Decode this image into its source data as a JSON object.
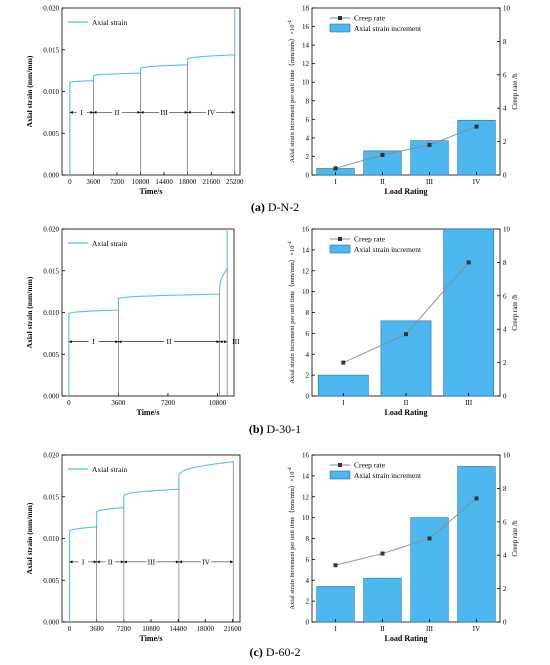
{
  "panels": [
    {
      "caption_letter": "(a)",
      "caption_name": "D-N-2",
      "left": {
        "ylabel": "Axial strain (mm/mm)",
        "xlabel": "Time/s",
        "legend": "Axial strain",
        "xticks": [
          "0",
          "3600",
          "7200",
          "10800",
          "14400",
          "18000",
          "21600",
          "25200"
        ],
        "yticks": [
          "0.000",
          "0.005",
          "0.010",
          "0.015",
          "0.020"
        ]
      },
      "right": {
        "ylabel_left": "Axial strain increment per unit time（mm/mm）×10",
        "ylabel_exp": "-4",
        "ylabel_right": "Creep rate /h",
        "xlabel": "Load Rating",
        "legend_line": "Creep rate",
        "legend_bar": "Axial strain increment",
        "yticks_left": [
          "0",
          "2",
          "4",
          "6",
          "8",
          "10",
          "12",
          "14",
          "16",
          "18"
        ],
        "yticks_right": [
          "0",
          "2",
          "4",
          "6",
          "8",
          "10"
        ]
      }
    },
    {
      "caption_letter": "(b)",
      "caption_name": "D-30-1",
      "left": {
        "ylabel": "Axial strain (mm/mm)",
        "xlabel": "Time/s",
        "legend": "Axial strain",
        "xticks": [
          "0",
          "3600",
          "7200",
          "10800"
        ],
        "yticks": [
          "0.000",
          "0.005",
          "0.010",
          "0.015",
          "0.020"
        ]
      },
      "right": {
        "ylabel_left": "Axial strain increment per unit time（mm/mm）×10",
        "ylabel_exp": "-4",
        "ylabel_right": "Creep rate /h",
        "xlabel": "Load Rating",
        "legend_line": "Creep rate",
        "legend_bar": "Axial strain increment",
        "yticks_left": [
          "0",
          "2",
          "4",
          "6",
          "8",
          "10",
          "12",
          "14",
          "16"
        ],
        "yticks_right": [
          "0",
          "2",
          "4",
          "6",
          "8",
          "10"
        ]
      }
    },
    {
      "caption_letter": "(c)",
      "caption_name": "D-60-2",
      "left": {
        "ylabel": "Axial strain (mm/mm)",
        "xlabel": "Time/s",
        "legend": "Axial strain",
        "xticks": [
          "0",
          "3600",
          "7200",
          "10800",
          "14400",
          "18000",
          "21600"
        ],
        "yticks": [
          "0.000",
          "0.005",
          "0.010",
          "0.015",
          "0.020"
        ]
      },
      "right": {
        "ylabel_left": "Axial strain increment per unit time（mm/mm）×10",
        "ylabel_exp": "-4",
        "ylabel_right": "Creep rate /h",
        "xlabel": "Load Rating",
        "legend_line": "Creep rate",
        "legend_bar": "Axial strain increment",
        "yticks_left": [
          "0",
          "2",
          "4",
          "6",
          "8",
          "10",
          "12",
          "14",
          "16"
        ],
        "yticks_right": [
          "0",
          "2",
          "4",
          "6",
          "8",
          "10"
        ]
      }
    }
  ],
  "colors": {
    "curve": "#4dc3e8",
    "bar_fill": "#4db8ef",
    "bar_edge": "#1f6fa8",
    "creep_line": "#8a8a8a",
    "creep_marker": "#333333",
    "axis": "#000000"
  },
  "chart_data": [
    {
      "type": "line",
      "panel": "(a) D-N-2",
      "xlabel": "Time/s",
      "ylabel": "Axial strain (mm/mm)",
      "xlim": [
        -1200,
        26000
      ],
      "ylim": [
        0,
        0.02
      ],
      "series": [
        {
          "name": "Axial strain",
          "stages": [
            {
              "label": "I",
              "t0": 0,
              "t1": 3600,
              "e0": 0.0111,
              "e1": 0.0113
            },
            {
              "label": "II",
              "t0": 3600,
              "t1": 10800,
              "e0": 0.0119,
              "e1": 0.0122
            },
            {
              "label": "III",
              "t0": 10800,
              "t1": 18000,
              "e0": 0.0128,
              "e1": 0.0132
            },
            {
              "label": "IV",
              "t0": 18000,
              "t1": 25200,
              "e0": 0.0139,
              "e1": 0.0144
            }
          ],
          "end_spike": [
            25200,
            0.02
          ]
        }
      ],
      "stage_labels": [
        "I",
        "II",
        "III",
        "IV"
      ],
      "stage_label_y": 0.0075
    },
    {
      "type": "bar",
      "panel": "(a) D-N-2",
      "categories": [
        "I",
        "II",
        "III",
        "IV"
      ],
      "xlabel": "Load Rating",
      "ylim": [
        0,
        18
      ],
      "y2lim": [
        0,
        10
      ],
      "series": [
        {
          "name": "Axial strain increment",
          "axis": "left",
          "values": [
            0.7,
            2.6,
            3.7,
            5.9
          ]
        },
        {
          "name": "Creep rate",
          "axis": "right",
          "type": "line",
          "values": [
            0.4,
            1.2,
            1.8,
            2.9
          ]
        }
      ]
    },
    {
      "type": "line",
      "panel": "(b) D-30-1",
      "xlabel": "Time/s",
      "ylabel": "Axial strain (mm/mm)",
      "xlim": [
        -500,
        12000
      ],
      "ylim": [
        0,
        0.02
      ],
      "series": [
        {
          "name": "Axial strain",
          "stages": [
            {
              "label": "I",
              "t0": 0,
              "t1": 3600,
              "e0": 0.0099,
              "e1": 0.0103
            },
            {
              "label": "II",
              "t0": 3600,
              "t1": 10950,
              "e0": 0.0117,
              "e1": 0.0122
            },
            {
              "label": "III",
              "t0": 10950,
              "t1": 11500,
              "e0": 0.0128,
              "e1": 0.0152
            }
          ],
          "end_spike": [
            11500,
            0.02
          ]
        }
      ],
      "stage_labels": [
        "I",
        "II",
        "III"
      ],
      "stage_label_y": 0.0065
    },
    {
      "type": "bar",
      "panel": "(b) D-30-1",
      "categories": [
        "I",
        "II",
        "III"
      ],
      "xlabel": "Load Rating",
      "ylim": [
        0,
        16
      ],
      "y2lim": [
        0,
        10
      ],
      "series": [
        {
          "name": "Axial strain increment",
          "axis": "left",
          "values": [
            2.0,
            7.2,
            16.0
          ]
        },
        {
          "name": "Creep rate",
          "axis": "right",
          "type": "line",
          "values": [
            2.0,
            3.7,
            8.0
          ]
        }
      ]
    },
    {
      "type": "line",
      "panel": "(c) D-60-2",
      "xlabel": "Time/s",
      "ylabel": "Axial strain (mm/mm)",
      "xlim": [
        -1000,
        22600
      ],
      "ylim": [
        0,
        0.02
      ],
      "series": [
        {
          "name": "Axial strain",
          "stages": [
            {
              "label": "I",
              "t0": 0,
              "t1": 3600,
              "e0": 0.0109,
              "e1": 0.0114
            },
            {
              "label": "II",
              "t0": 3600,
              "t1": 7200,
              "e0": 0.0132,
              "e1": 0.0137
            },
            {
              "label": "III",
              "t0": 7200,
              "t1": 14500,
              "e0": 0.0152,
              "e1": 0.0159
            },
            {
              "label": "IV",
              "t0": 14500,
              "t1": 21700,
              "e0": 0.0177,
              "e1": 0.0192
            }
          ]
        }
      ],
      "stage_labels": [
        "I",
        "II",
        "III",
        "IV"
      ],
      "stage_label_y": 0.0072
    },
    {
      "type": "bar",
      "panel": "(c) D-60-2",
      "categories": [
        "I",
        "II",
        "III",
        "IV"
      ],
      "xlabel": "Load Rating",
      "ylim": [
        0,
        16
      ],
      "y2lim": [
        0,
        10
      ],
      "series": [
        {
          "name": "Axial strain increment",
          "axis": "left",
          "values": [
            3.4,
            4.2,
            10.0,
            14.9
          ]
        },
        {
          "name": "Creep rate",
          "axis": "right",
          "type": "line",
          "values": [
            3.4,
            4.1,
            5.0,
            7.4
          ]
        }
      ]
    }
  ]
}
